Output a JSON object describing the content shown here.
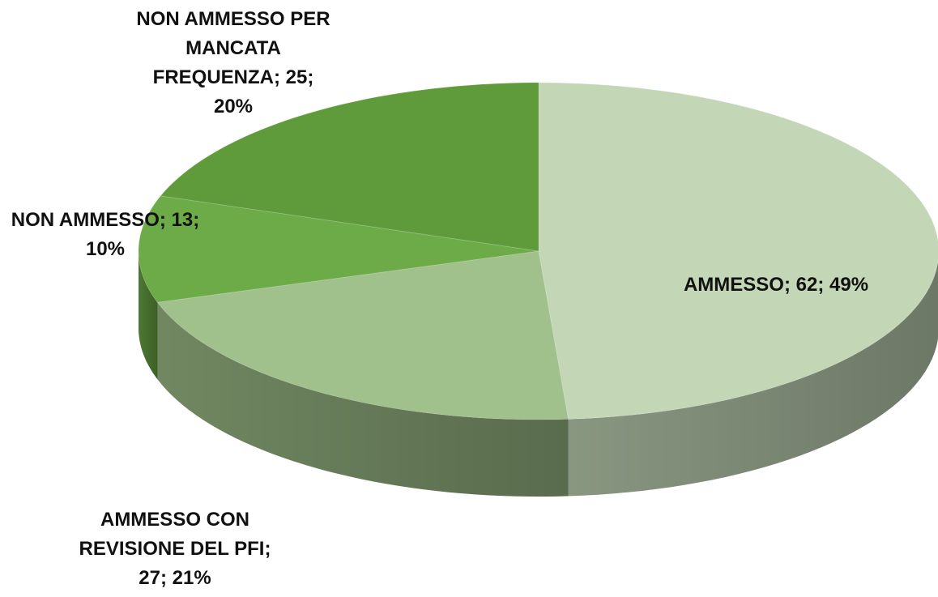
{
  "chart_data": {
    "type": "pie",
    "values": [
      62,
      27,
      13,
      25
    ],
    "value_labels": [
      "AMMESSO; 62; 49%",
      "AMMESSO CON REVISIONE DEL PFI; 27; 21%",
      "NON AMMESSO; 13; 10%",
      "NON AMMESSO PER MANCATA FREQUENZA; 25; 20%"
    ],
    "colors": [
      "#c3d7b7",
      "#a0c18b",
      "#6cab47",
      "#609b3b"
    ]
  }
}
